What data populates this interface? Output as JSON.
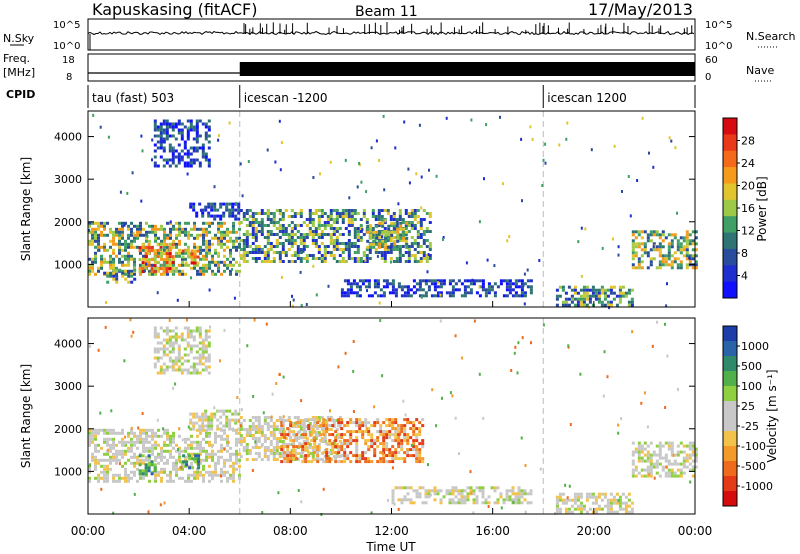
{
  "header": {
    "station": "Kapuskasing (fitACF)",
    "beam": "Beam 11",
    "date": "17/May/2013"
  },
  "strips": {
    "nsky_label": "N.Sky",
    "nsky_ticks": [
      "10^5",
      "10^0"
    ],
    "nsearch_label": "N.Search",
    "nsearch_ticks": [
      "10^5",
      "10^0"
    ],
    "freq_label": "Freq.",
    "freq_unit": "[MHz]",
    "freq_ticks": [
      "18",
      "8"
    ],
    "nave_label": "Nave",
    "nave_ticks": [
      "60",
      "0"
    ],
    "cpid_label": "CPID",
    "cpid_segments": [
      {
        "label": "tau (fast) 503",
        "start_hour": 0
      },
      {
        "label": "icescan -1200",
        "start_hour": 6
      },
      {
        "label": "icescan 1200",
        "start_hour": 18
      }
    ]
  },
  "chart_data": [
    {
      "type": "heatmap",
      "name": "power",
      "ylabel": "Slant Range [km]",
      "xlabel": "Time UT",
      "xlim_hours": [
        0,
        24
      ],
      "ylim": [
        0,
        4600
      ],
      "y_ticks": [
        "1000",
        "2000",
        "3000",
        "4000"
      ],
      "x_ticks": [
        "00:00",
        "04:00",
        "08:00",
        "12:00",
        "16:00",
        "20:00",
        "00:00"
      ],
      "colorbar": {
        "label": "Power [dB]",
        "ticks": [
          "28",
          "24",
          "20",
          "16",
          "12",
          "8",
          "4"
        ],
        "colors": [
          "#d70a10",
          "#e93918",
          "#f46a1a",
          "#f69a1c",
          "#e2c42e",
          "#9cca48",
          "#3f9f64",
          "#2e7474",
          "#2a4c9c",
          "#1f2fcf",
          "#1010ff"
        ]
      },
      "regions": [
        {
          "t0": 0.0,
          "t1": 6.0,
          "r0": 800,
          "r1": 2000,
          "level": "high"
        },
        {
          "t0": 2.0,
          "t1": 3.4,
          "r0": 850,
          "r1": 1500,
          "level": "peak"
        },
        {
          "t0": 3.7,
          "t1": 4.4,
          "r0": 1000,
          "r1": 1350,
          "level": "peak"
        },
        {
          "t0": 4.0,
          "t1": 6.0,
          "r0": 2050,
          "r1": 2450,
          "level": "low"
        },
        {
          "t0": 0.6,
          "t1": 1.8,
          "r0": 550,
          "r1": 900,
          "level": "mid"
        },
        {
          "t0": 2.6,
          "t1": 4.8,
          "r0": 3300,
          "r1": 4400,
          "level": "low"
        },
        {
          "t0": 6.0,
          "t1": 13.5,
          "r0": 1100,
          "r1": 2300,
          "level": "mid"
        },
        {
          "t0": 11.0,
          "t1": 12.6,
          "r0": 1400,
          "r1": 2000,
          "level": "high"
        },
        {
          "t0": 10.0,
          "t1": 17.5,
          "r0": 250,
          "r1": 650,
          "level": "low"
        },
        {
          "t0": 18.5,
          "t1": 21.5,
          "r0": 50,
          "r1": 500,
          "level": "mid"
        },
        {
          "t0": 21.5,
          "t1": 24.0,
          "r0": 900,
          "r1": 1800,
          "level": "high"
        }
      ]
    },
    {
      "type": "heatmap",
      "name": "velocity",
      "ylabel": "Slant Range [km]",
      "xlabel": "Time UT",
      "xlim_hours": [
        0,
        24
      ],
      "ylim": [
        0,
        4600
      ],
      "y_ticks": [
        "1000",
        "2000",
        "3000",
        "4000"
      ],
      "x_ticks": [
        "00:00",
        "04:00",
        "08:00",
        "12:00",
        "16:00",
        "20:00",
        "00:00"
      ],
      "colorbar": {
        "label": "Velocity [m s⁻¹]",
        "ticks": [
          "1000",
          "500",
          "100",
          "25",
          "-25",
          "-100",
          "-500",
          "-1000"
        ],
        "colors": [
          "#1c3eaa",
          "#2a64a8",
          "#2f8a6c",
          "#52b04a",
          "#8fd040",
          "#c8c8c8",
          "#c8c8c8",
          "#f2c24a",
          "#f49a2a",
          "#ee6a1c",
          "#e43a18",
          "#d40c0c"
        ]
      },
      "regions": [
        {
          "t0": 0.0,
          "t1": 6.0,
          "r0": 800,
          "r1": 2000,
          "level": "ground"
        },
        {
          "t0": 4.0,
          "t1": 6.0,
          "r0": 2000,
          "r1": 2450,
          "level": "ground"
        },
        {
          "t0": 6.0,
          "t1": 10.0,
          "r0": 1300,
          "r1": 2300,
          "level": "ground"
        },
        {
          "t0": 2.0,
          "t1": 2.7,
          "r0": 950,
          "r1": 1400,
          "level": "pos"
        },
        {
          "t0": 3.6,
          "t1": 4.4,
          "r0": 1050,
          "r1": 1400,
          "level": "pos"
        },
        {
          "t0": 7.6,
          "t1": 13.2,
          "r0": 1200,
          "r1": 2250,
          "level": "neg"
        },
        {
          "t0": 12.0,
          "t1": 17.5,
          "r0": 250,
          "r1": 650,
          "level": "ground"
        },
        {
          "t0": 18.5,
          "t1": 21.5,
          "r0": 50,
          "r1": 500,
          "level": "ground"
        },
        {
          "t0": 21.5,
          "t1": 24.0,
          "r0": 900,
          "r1": 1700,
          "level": "ground"
        },
        {
          "t0": 2.6,
          "t1": 4.8,
          "r0": 3300,
          "r1": 4400,
          "level": "ground"
        }
      ]
    }
  ]
}
